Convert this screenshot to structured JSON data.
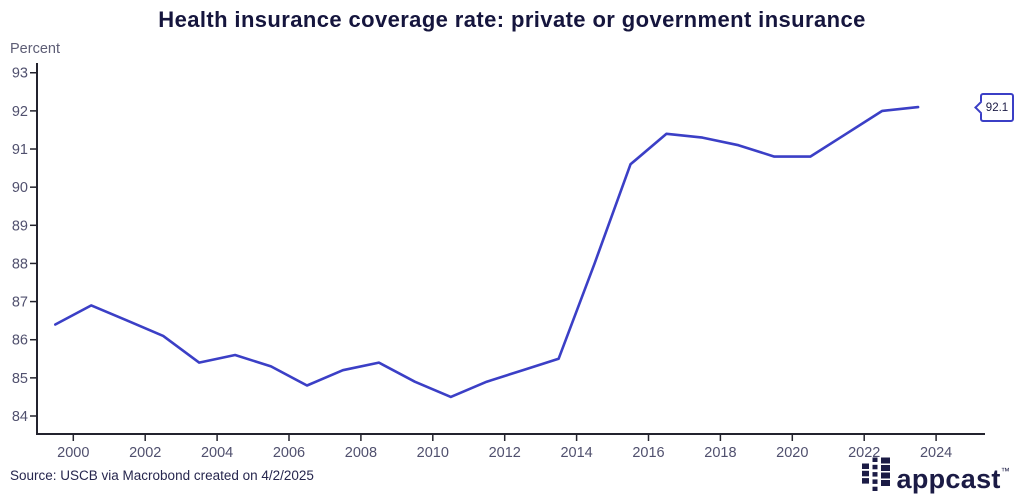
{
  "title": "Health insurance coverage rate: private or government insurance",
  "y_axis_label": "Percent",
  "source": "Source: USCB via Macrobond created on 4/2/2025",
  "callout": {
    "value": "92.1"
  },
  "logo": {
    "text": "appcast",
    "tm": "™"
  },
  "colors": {
    "line": "#3b3fc6",
    "axis": "#23232e",
    "tick_label": "#50506e",
    "title": "#15153d",
    "logo": "#1b1b45"
  },
  "chart_data": {
    "type": "line",
    "title": "Health insurance coverage rate: private or government insurance",
    "xlabel": "",
    "ylabel": "Percent",
    "ylim": [
      84,
      93
    ],
    "xlim": [
      1999,
      2024.8
    ],
    "grid": false,
    "legend_position": "none",
    "y_ticks": [
      84,
      85,
      86,
      87,
      88,
      89,
      90,
      91,
      92,
      93
    ],
    "x_ticks": [
      2000,
      2002,
      2004,
      2006,
      2008,
      2010,
      2012,
      2014,
      2016,
      2018,
      2020,
      2022,
      2024
    ],
    "x": [
      1999,
      2000,
      2001,
      2002,
      2003,
      2004,
      2005,
      2006,
      2007,
      2008,
      2009,
      2010,
      2011,
      2012,
      2013,
      2014,
      2015,
      2016,
      2017,
      2018,
      2019,
      2020,
      2021,
      2022,
      2023
    ],
    "series": [
      {
        "name": "Health insurance coverage rate (private or government)",
        "values": [
          86.4,
          86.9,
          86.5,
          86.1,
          85.4,
          85.6,
          85.3,
          84.8,
          85.2,
          85.4,
          84.9,
          84.5,
          84.9,
          85.2,
          85.5,
          88.0,
          90.6,
          91.4,
          91.3,
          91.1,
          90.8,
          90.8,
          91.4,
          92.0,
          92.1
        ]
      }
    ],
    "annotations": [
      {
        "type": "last-value-callout",
        "x": 2023,
        "y": 92.1,
        "label": "92.1"
      }
    ]
  }
}
